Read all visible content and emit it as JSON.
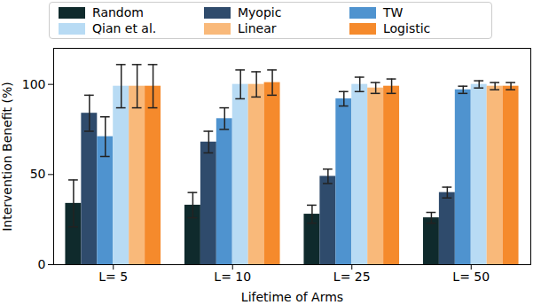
{
  "chart_data": {
    "type": "bar",
    "x_label": "Lifetime of Arms",
    "y_label": "Intervention Benefit (%)",
    "categories": [
      "L= 5",
      "L= 10",
      "L= 25",
      "L= 50"
    ],
    "series": [
      {
        "name": "Random",
        "color": "#0f2a2c",
        "values": [
          34,
          33,
          28,
          26
        ],
        "errors": [
          13,
          7,
          5,
          3
        ]
      },
      {
        "name": "Myopic",
        "color": "#2f4b6c",
        "values": [
          84,
          68,
          49,
          40
        ],
        "errors": [
          10,
          6,
          4,
          3
        ]
      },
      {
        "name": "TW",
        "color": "#4f93cf",
        "values": [
          71,
          81,
          92,
          97
        ],
        "errors": [
          11,
          6,
          4,
          2
        ]
      },
      {
        "name": "Qian et al.",
        "color": "#b8dbf4",
        "values": [
          99,
          100,
          100,
          100
        ],
        "errors": [
          12,
          8,
          4,
          2
        ]
      },
      {
        "name": "Linear",
        "color": "#f9b97a",
        "values": [
          99,
          100,
          98,
          99
        ],
        "errors": [
          12,
          7,
          3,
          2
        ]
      },
      {
        "name": "Logistic",
        "color": "#f58a2c",
        "values": [
          99,
          101,
          99,
          99
        ],
        "errors": [
          12,
          7,
          4,
          2
        ]
      }
    ],
    "ylim": [
      0,
      120
    ],
    "yticks": [
      0,
      50,
      100
    ],
    "grid": false,
    "legend": "top"
  }
}
